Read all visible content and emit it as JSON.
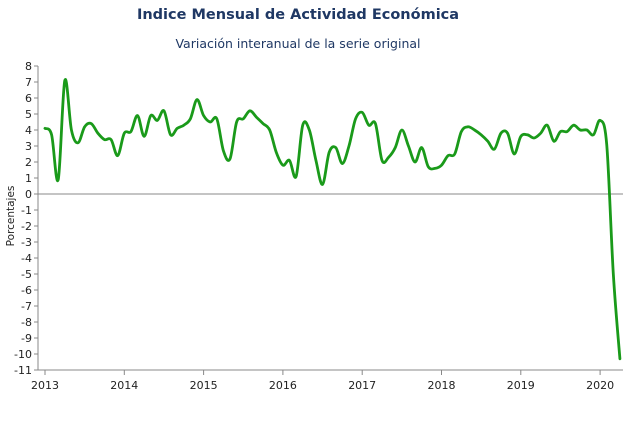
{
  "chart_data": {
    "type": "line",
    "title": "Indice Mensual de  Actividad Económica",
    "subtitle": "Variación interanual de la serie original",
    "ylabel": "Porcentajes",
    "xlabel": "",
    "ylim": [
      -11,
      8
    ],
    "y_ticks": [
      8,
      7,
      6,
      5,
      4,
      3,
      2,
      1,
      0,
      -1,
      -2,
      -3,
      -4,
      -5,
      -6,
      -7,
      -8,
      -9,
      -10,
      -11
    ],
    "x_ticks": [
      "2013",
      "2014",
      "2015",
      "2016",
      "2017",
      "2018",
      "2019",
      "2020"
    ],
    "grid": false,
    "line_color": "#1a9a1a",
    "series": [
      {
        "name": "",
        "x": [
          "2013-01",
          "2013-02",
          "2013-03",
          "2013-04",
          "2013-05",
          "2013-06",
          "2013-07",
          "2013-08",
          "2013-09",
          "2013-10",
          "2013-11",
          "2013-12",
          "2014-01",
          "2014-02",
          "2014-03",
          "2014-04",
          "2014-05",
          "2014-06",
          "2014-07",
          "2014-08",
          "2014-09",
          "2014-10",
          "2014-11",
          "2014-12",
          "2015-01",
          "2015-02",
          "2015-03",
          "2015-04",
          "2015-05",
          "2015-06",
          "2015-07",
          "2015-08",
          "2015-09",
          "2015-10",
          "2015-11",
          "2015-12",
          "2016-01",
          "2016-02",
          "2016-03",
          "2016-04",
          "2016-05",
          "2016-06",
          "2016-07",
          "2016-08",
          "2016-09",
          "2016-10",
          "2016-11",
          "2016-12",
          "2017-01",
          "2017-02",
          "2017-03",
          "2017-04",
          "2017-05",
          "2017-06",
          "2017-07",
          "2017-08",
          "2017-09",
          "2017-10",
          "2017-11",
          "2017-12",
          "2018-01",
          "2018-02",
          "2018-03",
          "2018-04",
          "2018-05",
          "2018-06",
          "2018-07",
          "2018-08",
          "2018-09",
          "2018-10",
          "2018-11",
          "2018-12",
          "2019-01",
          "2019-02",
          "2019-03",
          "2019-04",
          "2019-05",
          "2019-06",
          "2019-07",
          "2019-08",
          "2019-09",
          "2019-10",
          "2019-11",
          "2019-12",
          "2020-01",
          "2020-02",
          "2020-03",
          "2020-04"
        ],
        "values": [
          4.1,
          3.7,
          0.9,
          7.1,
          4.0,
          3.2,
          4.2,
          4.4,
          3.8,
          3.4,
          3.4,
          2.4,
          3.8,
          3.9,
          4.9,
          3.6,
          4.9,
          4.6,
          5.2,
          3.7,
          4.1,
          4.3,
          4.7,
          5.9,
          4.9,
          4.5,
          4.7,
          2.7,
          2.2,
          4.5,
          4.7,
          5.2,
          4.8,
          4.4,
          4.0,
          2.6,
          1.8,
          2.1,
          1.1,
          4.3,
          4.0,
          2.1,
          0.6,
          2.6,
          2.9,
          1.9,
          3.0,
          4.7,
          5.1,
          4.3,
          4.4,
          2.1,
          2.3,
          2.9,
          4.0,
          3.0,
          2.0,
          2.9,
          1.7,
          1.6,
          1.8,
          2.4,
          2.5,
          3.9,
          4.2,
          4.0,
          3.7,
          3.3,
          2.8,
          3.8,
          3.8,
          2.5,
          3.6,
          3.7,
          3.5,
          3.8,
          4.3,
          3.3,
          3.9,
          3.9,
          4.3,
          4.0,
          4.0,
          3.7,
          4.6,
          3.1,
          -5.0,
          -10.3
        ]
      }
    ]
  }
}
